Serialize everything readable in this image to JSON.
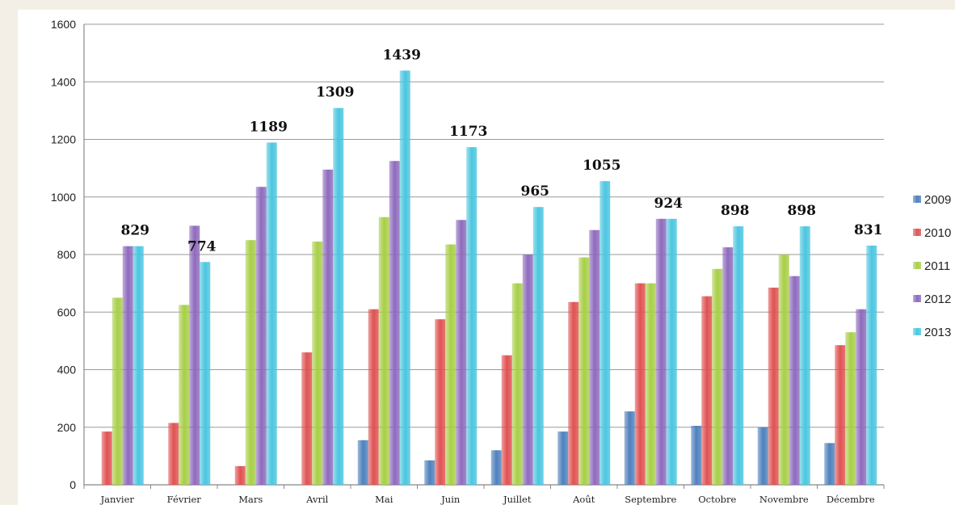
{
  "chart_data": {
    "type": "bar",
    "categories": [
      "Janvier",
      "Février",
      "Mars",
      "Avril",
      "Mai",
      "Juin",
      "Juillet",
      "Août",
      "Septembre",
      "Octobre",
      "Novembre",
      "Décembre"
    ],
    "ylim": [
      0,
      1600
    ],
    "yticks": [
      0,
      200,
      400,
      600,
      800,
      1000,
      1200,
      1400,
      1600
    ],
    "grid": true,
    "legend_position": "right",
    "series": [
      {
        "name": "2009",
        "color": "#4f81bd",
        "values": [
          0,
          0,
          0,
          0,
          155,
          85,
          120,
          185,
          255,
          205,
          200,
          145
        ]
      },
      {
        "name": "2010",
        "color": "#e05252",
        "values": [
          185,
          215,
          65,
          460,
          610,
          575,
          450,
          635,
          700,
          655,
          685,
          485
        ]
      },
      {
        "name": "2011",
        "color": "#a8cf48",
        "values": [
          650,
          625,
          850,
          845,
          930,
          835,
          700,
          790,
          700,
          750,
          800,
          530
        ]
      },
      {
        "name": "2012",
        "color": "#8e6bbd",
        "values": [
          829,
          900,
          1035,
          1095,
          1125,
          920,
          800,
          885,
          924,
          825,
          725,
          610
        ]
      },
      {
        "name": "2013",
        "color": "#4cc6e0",
        "values": [
          829,
          774,
          1189,
          1309,
          1439,
          1173,
          965,
          1055,
          924,
          898,
          898,
          831
        ]
      }
    ],
    "data_labels": [
      "829",
      "774",
      "1189",
      "1309",
      "1439",
      "1173",
      "965",
      "1055",
      "924",
      "898",
      "898",
      "831"
    ]
  }
}
